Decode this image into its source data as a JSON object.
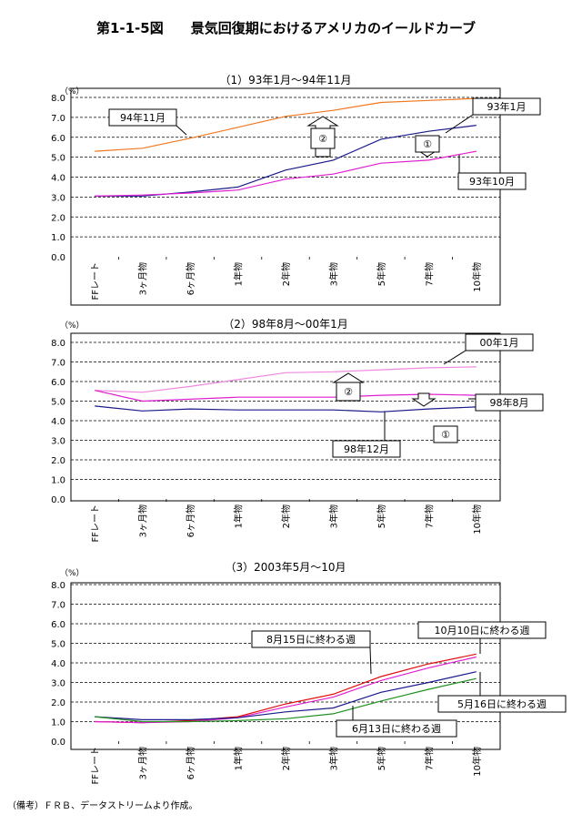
{
  "title": "第1-1-5図　　景気回復期におけるアメリカのイールドカーブ",
  "note": "（備考）ＦＲＢ、データストリームより作成。",
  "colors": {
    "orange": "#f07820",
    "navy": "#1a1a8c",
    "magenta": "#e020d0",
    "pink": "#f088e0",
    "red": "#e01010",
    "green": "#209020"
  },
  "chart_data": [
    {
      "type": "line",
      "title": "（1）93年1月～94年11月",
      "unit_label": "（%）",
      "categories": [
        "FFレート",
        "3ヶ月物",
        "6ヶ月物",
        "1年物",
        "2年物",
        "3年物",
        "5年物",
        "7年物",
        "10年物"
      ],
      "ylim": [
        0,
        8
      ],
      "yticks": [
        "0.0",
        "1.0",
        "2.0",
        "3.0",
        "4.0",
        "5.0",
        "6.0",
        "7.0",
        "8.0"
      ],
      "grid": true,
      "series": [
        {
          "name": "94年11月",
          "color": "#f07820",
          "values": [
            5.3,
            5.45,
            5.95,
            6.5,
            7.05,
            7.35,
            7.75,
            7.85,
            7.95
          ]
        },
        {
          "name": "93年1月",
          "color": "#1a1a8c",
          "values": [
            3.05,
            3.05,
            3.25,
            3.5,
            4.35,
            4.85,
            5.9,
            6.3,
            6.6
          ]
        },
        {
          "name": "93年10月",
          "color": "#e020d0",
          "values": [
            3.05,
            3.1,
            3.2,
            3.35,
            3.9,
            4.15,
            4.7,
            4.85,
            5.3
          ]
        }
      ],
      "annotations": [
        "①",
        "②"
      ]
    },
    {
      "type": "line",
      "title": "（2）98年8月～00年1月",
      "unit_label": "（%）",
      "categories": [
        "FFレート",
        "3ヶ月物",
        "6ヶ月物",
        "1年物",
        "2年物",
        "3年物",
        "5年物",
        "7年物",
        "10年物"
      ],
      "ylim": [
        0,
        8
      ],
      "yticks": [
        "0.0",
        "1.0",
        "2.0",
        "3.0",
        "4.0",
        "5.0",
        "6.0",
        "7.0",
        "8.0"
      ],
      "grid": true,
      "series": [
        {
          "name": "00年1月",
          "color": "#f088e0",
          "values": [
            5.55,
            5.45,
            5.75,
            6.1,
            6.45,
            6.5,
            6.6,
            6.7,
            6.75
          ]
        },
        {
          "name": "98年8月",
          "color": "#e020d0",
          "values": [
            5.55,
            5.0,
            5.1,
            5.2,
            5.2,
            5.2,
            5.3,
            5.35,
            5.3
          ]
        },
        {
          "name": "98年12月",
          "color": "#1a1a8c",
          "values": [
            4.75,
            4.5,
            4.6,
            4.55,
            4.55,
            4.55,
            4.45,
            4.6,
            4.7
          ]
        }
      ],
      "annotations": [
        "①",
        "②"
      ]
    },
    {
      "type": "line",
      "title": "（3）2003年5月～10月",
      "unit_label": "（%）",
      "categories": [
        "FFレート",
        "3ヶ月物",
        "6ヶ月物",
        "1年物",
        "2年物",
        "3年物",
        "5年物",
        "7年物",
        "10年物"
      ],
      "ylim": [
        0,
        8
      ],
      "yticks": [
        "0.0",
        "1.0",
        "2.0",
        "3.0",
        "4.0",
        "5.0",
        "6.0",
        "7.0",
        "8.0"
      ],
      "grid": true,
      "series": [
        {
          "name": "8月15日に終わる週",
          "color": "#e01010",
          "values": [
            1.0,
            0.95,
            1.05,
            1.25,
            1.9,
            2.4,
            3.3,
            3.95,
            4.45
          ]
        },
        {
          "name": "10月10日に終わる週",
          "color": "#e020d0",
          "values": [
            1.0,
            0.95,
            1.0,
            1.2,
            1.75,
            2.25,
            3.1,
            3.75,
            4.3
          ]
        },
        {
          "name": "5月16日に終わる週",
          "color": "#1a1a8c",
          "values": [
            1.25,
            1.1,
            1.1,
            1.2,
            1.5,
            1.7,
            2.5,
            3.0,
            3.55
          ]
        },
        {
          "name": "6月13日に終わる週",
          "color": "#209020",
          "values": [
            1.25,
            1.0,
            1.0,
            1.05,
            1.15,
            1.4,
            2.05,
            2.65,
            3.2
          ]
        }
      ]
    }
  ]
}
